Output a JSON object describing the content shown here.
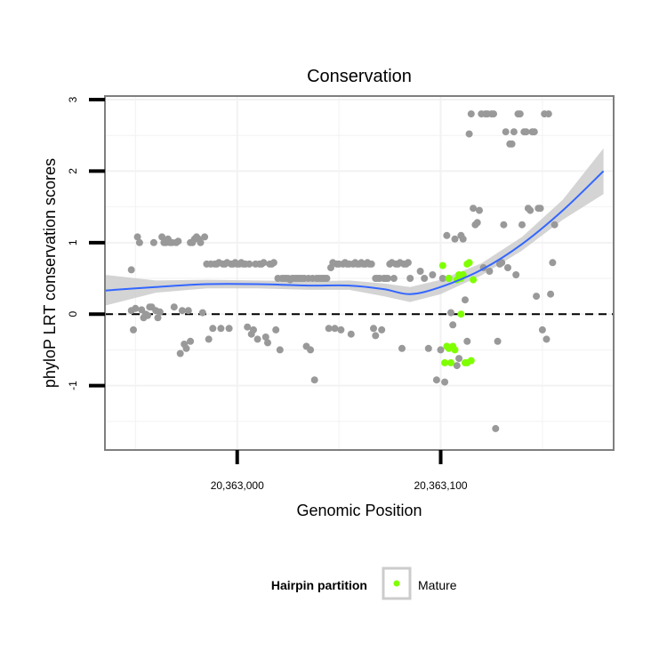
{
  "chart_data": {
    "type": "scatter",
    "title": "Conservation",
    "xlabel": "Genomic Position",
    "ylabel": "phyloP LRT conservation scores",
    "xlim": [
      20362935,
      20363185
    ],
    "ylim": [
      -1.9,
      3.05
    ],
    "x_ticks": [
      {
        "value": 20363000,
        "label": "20,363,000"
      },
      {
        "value": 20363100,
        "label": "20,363,100"
      }
    ],
    "y_ticks": [
      {
        "value": -1,
        "label": "-1"
      },
      {
        "value": 0,
        "label": "0"
      },
      {
        "value": 1,
        "label": "1"
      },
      {
        "value": 2,
        "label": "2"
      },
      {
        "value": 3,
        "label": "3"
      }
    ],
    "reference_line": {
      "y": 0,
      "style": "dashed"
    },
    "grid": true,
    "colors": {
      "other_points": "#999999",
      "mature_points": "#7fff00",
      "smooth_line": "#3366ff",
      "confidence_band": "#cccccc",
      "panel_border": "#7f7f7f",
      "grid": "#f2f2f2"
    },
    "legend": {
      "title": "Hairpin partition",
      "position": "bottom",
      "entries": [
        {
          "label": "Mature",
          "color": "#7fff00"
        }
      ]
    },
    "series": [
      {
        "points": [
          [
            20362948,
            0.62
          ],
          [
            20362948,
            0.05
          ],
          [
            20362949,
            -0.22
          ],
          [
            20362950,
            0.08
          ],
          [
            20362951,
            1.08
          ],
          [
            20362952,
            1.0
          ],
          [
            20362953,
            0.06
          ],
          [
            20362954,
            -0.05
          ],
          [
            20362955,
            0.0
          ],
          [
            20362956,
            -0.02
          ],
          [
            20362957,
            0.1
          ],
          [
            20362958,
            0.1
          ],
          [
            20362959,
            1.0
          ],
          [
            20362960,
            0.05
          ],
          [
            20362961,
            -0.05
          ],
          [
            20362962,
            0.03
          ],
          [
            20362963,
            1.08
          ],
          [
            20362964,
            1.0
          ],
          [
            20362965,
            1.0
          ],
          [
            20362966,
            1.05
          ],
          [
            20362967,
            1.0
          ],
          [
            20362968,
            1.0
          ],
          [
            20362969,
            0.1
          ],
          [
            20362970,
            1.0
          ],
          [
            20362971,
            1.02
          ],
          [
            20362972,
            -0.55
          ],
          [
            20362973,
            0.05
          ],
          [
            20362974,
            -0.42
          ],
          [
            20362975,
            -0.48
          ],
          [
            20362976,
            0.05
          ],
          [
            20362977,
            1.0
          ],
          [
            20362977,
            -0.38
          ],
          [
            20362978,
            1.0
          ],
          [
            20362979,
            1.05
          ],
          [
            20362980,
            1.08
          ],
          [
            20362981,
            1.05
          ],
          [
            20362982,
            1.0
          ],
          [
            20362983,
            0.02
          ],
          [
            20362984,
            1.08
          ],
          [
            20362985,
            0.7
          ],
          [
            20362986,
            -0.35
          ],
          [
            20362987,
            0.7
          ],
          [
            20362988,
            -0.2
          ],
          [
            20362989,
            0.7
          ],
          [
            20362990,
            0.7
          ],
          [
            20362991,
            0.72
          ],
          [
            20362992,
            -0.2
          ],
          [
            20362993,
            0.7
          ],
          [
            20362994,
            0.7
          ],
          [
            20362995,
            0.72
          ],
          [
            20362996,
            -0.2
          ],
          [
            20362997,
            0.7
          ],
          [
            20362998,
            0.7
          ],
          [
            20362999,
            0.72
          ],
          [
            20363000,
            0.7
          ],
          [
            20363001,
            0.7
          ],
          [
            20363002,
            0.72
          ],
          [
            20363003,
            0.7
          ],
          [
            20363004,
            0.7
          ],
          [
            20363005,
            -0.18
          ],
          [
            20363006,
            0.7
          ],
          [
            20363007,
            -0.28
          ],
          [
            20363008,
            -0.22
          ],
          [
            20363009,
            0.7
          ],
          [
            20363010,
            -0.35
          ],
          [
            20363011,
            0.7
          ],
          [
            20363012,
            0.7
          ],
          [
            20363013,
            0.72
          ],
          [
            20363014,
            -0.32
          ],
          [
            20363015,
            -0.4
          ],
          [
            20363016,
            0.7
          ],
          [
            20363017,
            0.7
          ],
          [
            20363018,
            0.72
          ],
          [
            20363019,
            -0.22
          ],
          [
            20363020,
            0.5
          ],
          [
            20363021,
            -0.5
          ],
          [
            20363022,
            0.5
          ],
          [
            20363023,
            0.5
          ],
          [
            20363024,
            0.5
          ],
          [
            20363025,
            0.5
          ],
          [
            20363026,
            0.48
          ],
          [
            20363027,
            0.5
          ],
          [
            20363028,
            0.5
          ],
          [
            20363029,
            0.5
          ],
          [
            20363030,
            0.5
          ],
          [
            20363031,
            0.5
          ],
          [
            20363032,
            0.5
          ],
          [
            20363033,
            0.5
          ],
          [
            20363034,
            -0.45
          ],
          [
            20363035,
            0.5
          ],
          [
            20363036,
            -0.5
          ],
          [
            20363037,
            0.5
          ],
          [
            20363038,
            -0.92
          ],
          [
            20363039,
            0.5
          ],
          [
            20363040,
            0.5
          ],
          [
            20363041,
            0.5
          ],
          [
            20363042,
            0.5
          ],
          [
            20363043,
            0.5
          ],
          [
            20363044,
            0.5
          ],
          [
            20363045,
            -0.2
          ],
          [
            20363046,
            0.65
          ],
          [
            20363047,
            0.72
          ],
          [
            20363048,
            -0.2
          ],
          [
            20363049,
            0.7
          ],
          [
            20363050,
            0.7
          ],
          [
            20363051,
            -0.22
          ],
          [
            20363052,
            0.7
          ],
          [
            20363053,
            0.72
          ],
          [
            20363054,
            0.7
          ],
          [
            20363055,
            0.7
          ],
          [
            20363056,
            -0.28
          ],
          [
            20363057,
            0.7
          ],
          [
            20363058,
            0.72
          ],
          [
            20363059,
            0.7
          ],
          [
            20363060,
            0.7
          ],
          [
            20363061,
            0.72
          ],
          [
            20363062,
            0.7
          ],
          [
            20363063,
            0.7
          ],
          [
            20363064,
            0.72
          ],
          [
            20363065,
            0.7
          ],
          [
            20363066,
            0.7
          ],
          [
            20363067,
            -0.2
          ],
          [
            20363068,
            0.5
          ],
          [
            20363068,
            -0.3
          ],
          [
            20363069,
            0.5
          ],
          [
            20363070,
            0.5
          ],
          [
            20363071,
            -0.22
          ],
          [
            20363072,
            0.5
          ],
          [
            20363073,
            0.5
          ],
          [
            20363074,
            0.5
          ],
          [
            20363075,
            0.7
          ],
          [
            20363076,
            0.72
          ],
          [
            20363077,
            0.5
          ],
          [
            20363078,
            0.7
          ],
          [
            20363079,
            0.7
          ],
          [
            20363080,
            0.72
          ],
          [
            20363081,
            -0.48
          ],
          [
            20363082,
            0.7
          ],
          [
            20363083,
            0.7
          ],
          [
            20363084,
            0.72
          ],
          [
            20363085,
            0.5
          ],
          [
            20363090,
            0.6
          ],
          [
            20363092,
            0.5
          ],
          [
            20363094,
            -0.48
          ],
          [
            20363096,
            0.55
          ],
          [
            20363098,
            -0.92
          ],
          [
            20363100,
            -0.5
          ],
          [
            20363101,
            0.5
          ],
          [
            20363102,
            -0.95
          ],
          [
            20363103,
            1.1
          ],
          [
            20363104,
            0.5
          ],
          [
            20363105,
            0.02
          ],
          [
            20363106,
            -0.15
          ],
          [
            20363107,
            1.05
          ],
          [
            20363108,
            -0.72
          ],
          [
            20363109,
            -0.62
          ],
          [
            20363110,
            1.1
          ],
          [
            20363111,
            1.05
          ],
          [
            20363112,
            0.2
          ],
          [
            20363113,
            -0.38
          ],
          [
            20363114,
            2.52
          ],
          [
            20363115,
            2.8
          ],
          [
            20363116,
            1.48
          ],
          [
            20363117,
            1.25
          ],
          [
            20363118,
            1.28
          ],
          [
            20363119,
            1.45
          ],
          [
            20363120,
            2.8
          ],
          [
            20363121,
            0.65
          ],
          [
            20363122,
            2.8
          ],
          [
            20363123,
            2.8
          ],
          [
            20363124,
            0.6
          ],
          [
            20363125,
            2.8
          ],
          [
            20363126,
            2.8
          ],
          [
            20363127,
            -1.6
          ],
          [
            20363128,
            -0.38
          ],
          [
            20363129,
            0.7
          ],
          [
            20363130,
            0.72
          ],
          [
            20363131,
            1.25
          ],
          [
            20363132,
            2.55
          ],
          [
            20363133,
            0.65
          ],
          [
            20363134,
            2.38
          ],
          [
            20363135,
            2.38
          ],
          [
            20363136,
            2.55
          ],
          [
            20363137,
            0.55
          ],
          [
            20363138,
            2.8
          ],
          [
            20363139,
            2.8
          ],
          [
            20363140,
            1.25
          ],
          [
            20363141,
            2.55
          ],
          [
            20363142,
            2.55
          ],
          [
            20363143,
            1.48
          ],
          [
            20363144,
            1.45
          ],
          [
            20363145,
            2.55
          ],
          [
            20363146,
            2.55
          ],
          [
            20363147,
            0.25
          ],
          [
            20363148,
            1.48
          ],
          [
            20363149,
            1.48
          ],
          [
            20363150,
            -0.22
          ],
          [
            20363151,
            2.8
          ],
          [
            20363152,
            -0.35
          ],
          [
            20363153,
            2.8
          ],
          [
            20363154,
            0.28
          ],
          [
            20363155,
            0.72
          ],
          [
            20363156,
            1.25
          ]
        ]
      },
      {
        "name": "Mature",
        "points": [
          [
            20363101,
            0.68
          ],
          [
            20363102,
            -0.68
          ],
          [
            20363103,
            -0.45
          ],
          [
            20363104,
            0.5
          ],
          [
            20363104,
            -0.48
          ],
          [
            20363105,
            -0.68
          ],
          [
            20363106,
            -0.45
          ],
          [
            20363107,
            -0.5
          ],
          [
            20363108,
            0.48
          ],
          [
            20363109,
            0.55
          ],
          [
            20363110,
            0.0
          ],
          [
            20363110,
            0.5
          ],
          [
            20363111,
            0.55
          ],
          [
            20363112,
            -0.68
          ],
          [
            20363113,
            0.7
          ],
          [
            20363113,
            -0.68
          ],
          [
            20363114,
            0.72
          ],
          [
            20363115,
            -0.65
          ],
          [
            20363116,
            0.48
          ]
        ]
      }
    ],
    "smooth_line": {
      "x": [
        20362935,
        20362960,
        20362985,
        20363010,
        20363035,
        20363055,
        20363072,
        20363085,
        20363100,
        20363120,
        20363140,
        20363160,
        20363180
      ],
      "y": [
        0.33,
        0.38,
        0.42,
        0.42,
        0.4,
        0.4,
        0.35,
        0.28,
        0.38,
        0.62,
        0.98,
        1.45,
        2.0
      ]
    },
    "confidence_band": {
      "x": [
        20362935,
        20362960,
        20362985,
        20363010,
        20363035,
        20363055,
        20363072,
        20363085,
        20363100,
        20363120,
        20363140,
        20363160,
        20363180
      ],
      "lower": [
        0.12,
        0.3,
        0.36,
        0.36,
        0.34,
        0.34,
        0.25,
        0.17,
        0.28,
        0.54,
        0.89,
        1.32,
        1.68
      ],
      "upper": [
        0.55,
        0.47,
        0.48,
        0.47,
        0.46,
        0.47,
        0.43,
        0.38,
        0.48,
        0.71,
        1.08,
        1.6,
        2.32
      ]
    }
  }
}
